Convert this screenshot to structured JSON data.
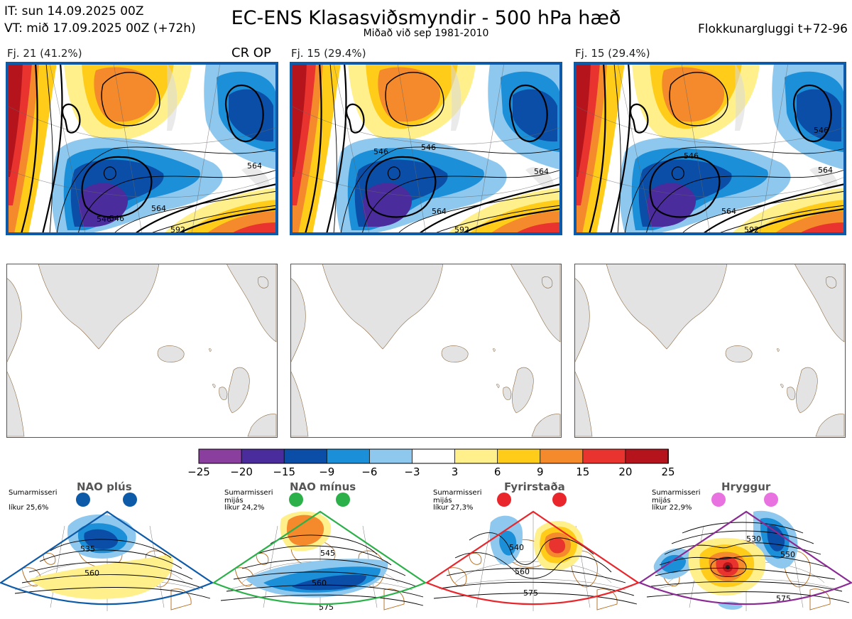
{
  "header": {
    "it_line": "IT: sun 14.09.2025 00Z",
    "vt_line": "VT: mið 17.09.2025 00Z  (+72h)",
    "title": "EC-ENS Klasasviðsmyndir - 500 hPa hæð",
    "subtitle": "Miðað við sep 1981-2010",
    "window": "Flokkunargluggi t+72-96"
  },
  "clusters": [
    {
      "label": "Fj. 21 (41.2%)",
      "extra": "CR OP",
      "contours": [
        "546",
        "546",
        "564",
        "564",
        "592"
      ]
    },
    {
      "label": "Fj. 15 (29.4%)",
      "extra": "",
      "contours": [
        "546",
        "546",
        "564",
        "564",
        "592"
      ]
    },
    {
      "label": "Fj. 15 (29.4%)",
      "extra": "",
      "contours": [
        "546",
        "546",
        "564",
        "564",
        "592"
      ]
    }
  ],
  "colorbar": {
    "ticks": [
      "−25",
      "−20",
      "−15",
      "−9",
      "−6",
      "−3",
      "3",
      "6",
      "9",
      "15",
      "20",
      "25"
    ],
    "colors": [
      "#8a3f9e",
      "#4a2c9c",
      "#0b4ea8",
      "#1b8fd8",
      "#8ec8ee",
      "#ffffff",
      "#fff08c",
      "#ffcc1a",
      "#f58a2c",
      "#e8332e",
      "#b5141c"
    ]
  },
  "regimes": [
    {
      "name": "NAO plús",
      "season": "Sumarmisseri",
      "line2": "",
      "prob": "líkur 25,6%",
      "color": "#0d5aa8",
      "labels": [
        "535",
        "560"
      ]
    },
    {
      "name": "NAO mínus",
      "season": "Sumarmisseri",
      "line2": "mijás",
      "prob": "líkur 24,2%",
      "color": "#2bb04a",
      "labels": [
        "545",
        "560",
        "575"
      ]
    },
    {
      "name": "Fyrirstaða",
      "season": "Sumarmisseri",
      "line2": "mijás",
      "prob": "líkur 27,3%",
      "color": "#e8262b",
      "labels": [
        "540",
        "560",
        "575"
      ]
    },
    {
      "name": "Hryggur",
      "season": "Sumarmisseri",
      "line2": "mijás",
      "prob": "líkur 22,9%",
      "color": "#8a2a93",
      "labels": [
        "530",
        "550",
        "575"
      ]
    }
  ]
}
